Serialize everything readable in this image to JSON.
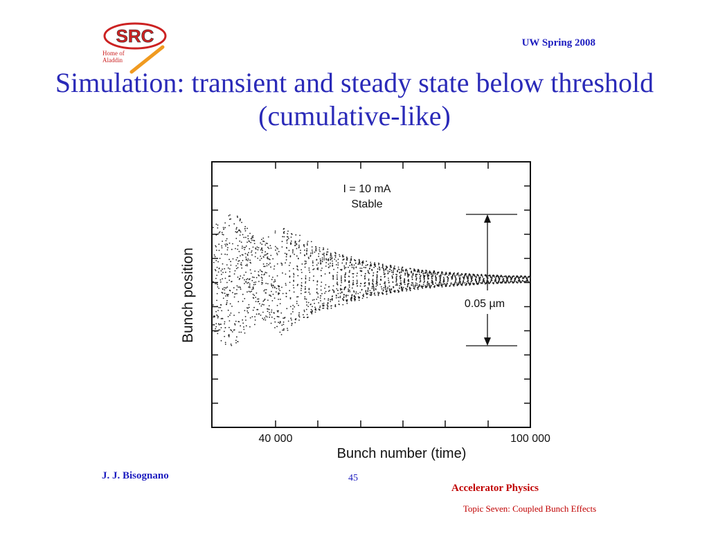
{
  "header": {
    "logo": {
      "text": "SRC",
      "subtext_line1": "Home of",
      "subtext_line2": "Aladdin"
    },
    "right_text": "UW Spring 2008"
  },
  "title": "Simulation: transient and steady state below threshold (cumulative-like)",
  "chart_data": {
    "type": "scatter",
    "xlabel": "Bunch number (time)",
    "ylabel": "Bunch position",
    "x_ticks_labeled": [
      "40 000",
      "100 000"
    ],
    "annotations": [
      "I = 10 mA",
      "Stable",
      "0.05 µm"
    ],
    "scale_bar_um": 0.05,
    "description_series": {
      "name": "",
      "x_start": 28000,
      "x_end": 100000,
      "behavior": "damped oscillation converging to steady state"
    },
    "grid": false
  },
  "footer": {
    "author": "J. J. Bisognano",
    "page": "45",
    "course": "Accelerator Physics",
    "topic": "Topic Seven: Coupled Bunch Effects"
  },
  "colors": {
    "title": "#2a2ab8",
    "footer_accent": "#c00000",
    "logo_red": "#cc2222",
    "logo_orange": "#f09a20"
  }
}
